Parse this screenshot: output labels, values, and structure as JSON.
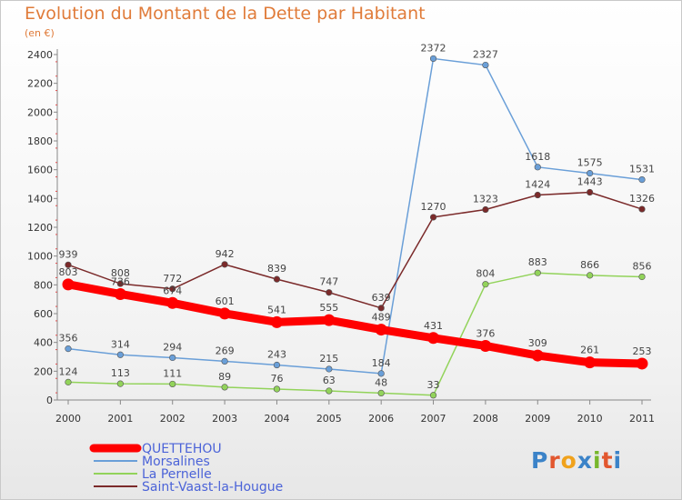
{
  "logo_text": "Proxiti",
  "chart_data": {
    "type": "line",
    "title": "Evolution du Montant de la Dette par Habitant",
    "subtitle": "(en €)",
    "x": [
      "2000",
      "2001",
      "2002",
      "2003",
      "2004",
      "2005",
      "2006",
      "2007",
      "2008",
      "2009",
      "2010",
      "2011"
    ],
    "ylim": [
      0,
      2400
    ],
    "yticks": [
      0,
      200,
      400,
      600,
      800,
      1000,
      1200,
      1400,
      1600,
      1800,
      2000,
      2200,
      2400
    ],
    "grid": false,
    "legend_position": "bottom-left",
    "series": [
      {
        "name": "QUETTEHOU",
        "color": "#ff0000",
        "values": [
          803,
          736,
          674,
          601,
          541,
          555,
          489,
          431,
          376,
          309,
          261,
          253
        ]
      },
      {
        "name": "Morsalines",
        "color": "#6a9fd8",
        "values": [
          356,
          314,
          294,
          269,
          243,
          215,
          184,
          2372,
          2327,
          1618,
          1575,
          1531
        ]
      },
      {
        "name": "La Pernelle",
        "color": "#92d35a",
        "values": [
          124,
          113,
          111,
          89,
          76,
          63,
          48,
          33,
          804,
          883,
          866,
          856
        ]
      },
      {
        "name": "Saint-Vaast-la-Hougue",
        "color": "#7b2a2a",
        "values": [
          939,
          808,
          772,
          942,
          839,
          747,
          639,
          1270,
          1323,
          1424,
          1443,
          1326
        ]
      }
    ]
  }
}
